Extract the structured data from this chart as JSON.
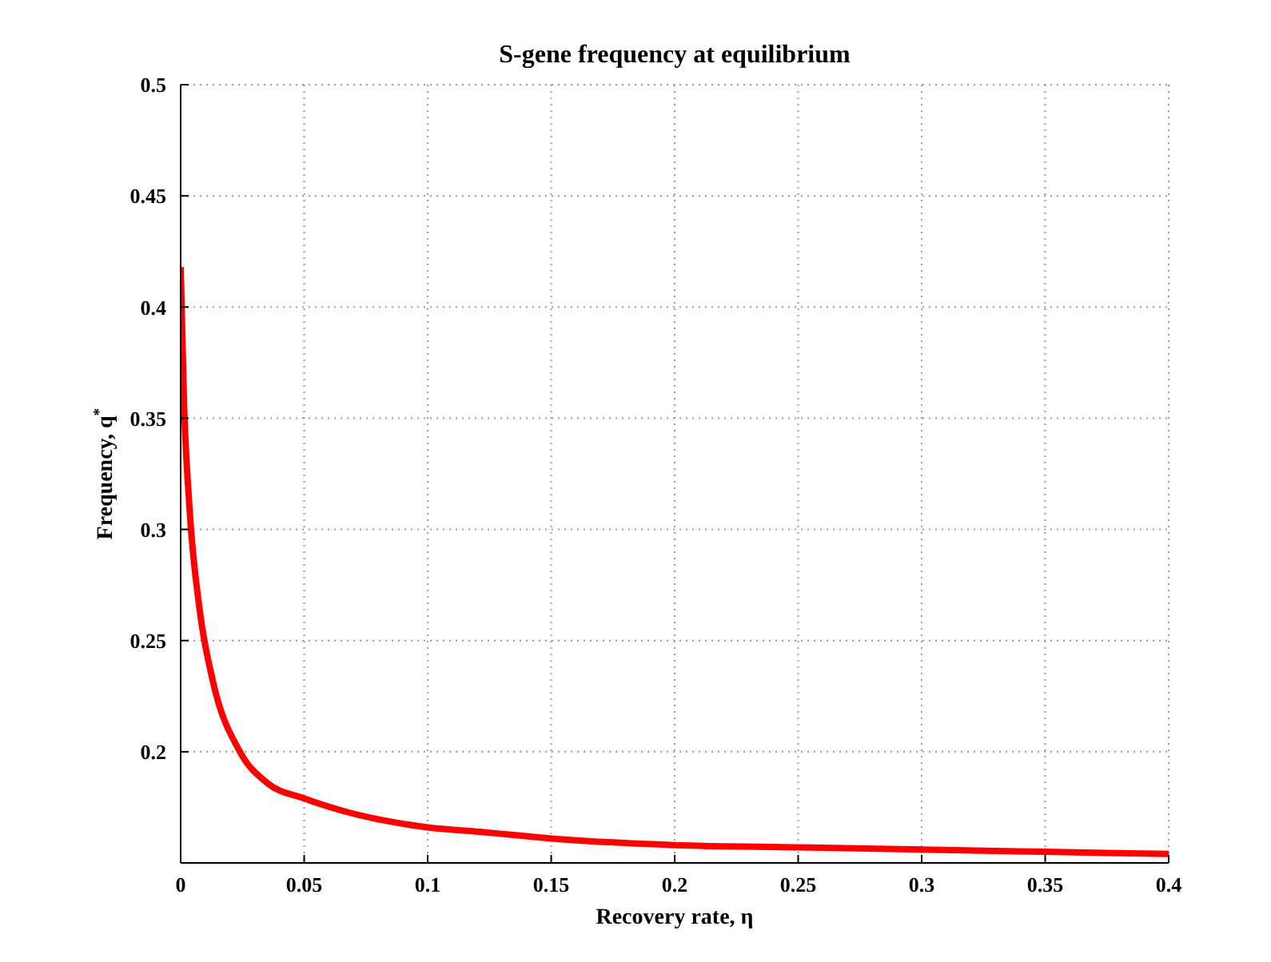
{
  "chart_data": {
    "type": "line",
    "title": "S-gene frequency at equilibrium",
    "xlabel": "Recovery rate, η",
    "ylabel": "Frequency, q$^{*}$",
    "x": [
      0,
      0.0013,
      0.0035,
      0.0078,
      0.013,
      0.024,
      0.035,
      0.05,
      0.067,
      0.1,
      0.121,
      0.15,
      0.2,
      0.25,
      0.3,
      0.35,
      0.4
    ],
    "series": [
      {
        "color": "#ff0000",
        "values": [
          0.418,
          0.359,
          0.311,
          0.263,
          0.232,
          0.2,
          0.186,
          0.179,
          0.173,
          0.166,
          0.164,
          0.161,
          0.158,
          0.157,
          0.156,
          0.155,
          0.154
        ]
      }
    ],
    "xlim": [
      0,
      0.4
    ],
    "xticks": [
      0,
      0.05,
      0.1,
      0.15,
      0.2,
      0.25,
      0.3,
      0.35,
      0.4
    ],
    "ylim": [
      0.15,
      0.5
    ],
    "yticks": [
      0.2,
      0.25,
      0.3,
      0.35,
      0.4,
      0.45,
      0.5
    ],
    "grid": true,
    "marker": "none",
    "line_style": "solid"
  }
}
